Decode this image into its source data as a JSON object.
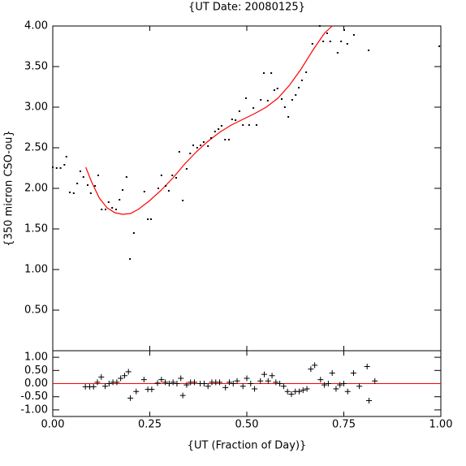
{
  "chart_data": [
    {
      "type": "scatter",
      "title": "{UT Date: 20080125}",
      "y_label": "{350 micron CSO-ou}",
      "marker": "dot",
      "color": "#000000",
      "x": [
        0.0,
        0.01,
        0.02,
        0.03,
        0.035,
        0.044,
        0.054,
        0.063,
        0.071,
        0.079,
        0.09,
        0.098,
        0.109,
        0.117,
        0.126,
        0.136,
        0.144,
        0.153,
        0.163,
        0.172,
        0.18,
        0.19,
        0.199,
        0.209,
        0.236,
        0.245,
        0.253,
        0.272,
        0.28,
        0.291,
        0.299,
        0.308,
        0.318,
        0.326,
        0.335,
        0.345,
        0.354,
        0.362,
        0.372,
        0.381,
        0.389,
        0.4,
        0.408,
        0.418,
        0.427,
        0.435,
        0.444,
        0.454,
        0.462,
        0.471,
        0.481,
        0.49,
        0.498,
        0.506,
        0.517,
        0.525,
        0.536,
        0.544,
        0.554,
        0.563,
        0.571,
        0.579,
        0.59,
        0.598,
        0.607,
        0.617,
        0.626,
        0.634,
        0.642,
        0.653,
        0.669,
        0.688,
        0.697,
        0.707,
        0.715,
        0.734,
        0.743,
        0.751,
        0.759,
        0.776,
        0.814,
        0.996
      ],
      "values": [
        2.26,
        2.25,
        2.25,
        2.29,
        2.39,
        1.95,
        1.94,
        2.06,
        2.21,
        2.14,
        2.04,
        1.94,
        2.03,
        2.16,
        1.74,
        1.74,
        1.83,
        1.76,
        1.74,
        1.86,
        1.98,
        2.14,
        1.13,
        1.45,
        1.96,
        1.62,
        1.62,
        2.0,
        2.16,
        2.03,
        1.97,
        2.16,
        2.13,
        2.45,
        1.85,
        2.24,
        2.43,
        2.53,
        2.5,
        2.53,
        2.57,
        2.52,
        2.62,
        2.7,
        2.73,
        2.77,
        2.6,
        2.6,
        2.85,
        2.84,
        2.95,
        2.78,
        3.11,
        2.78,
        2.99,
        2.78,
        3.09,
        3.42,
        3.08,
        3.42,
        3.21,
        3.23,
        3.1,
        3.0,
        2.88,
        3.09,
        3.15,
        3.24,
        3.33,
        3.43,
        3.78,
        4.0,
        3.81,
        3.91,
        3.81,
        3.67,
        3.81,
        3.95,
        3.78,
        3.89,
        3.7,
        3.75
      ],
      "fit": {
        "color": "#ff0000",
        "x": [
          0.085,
          0.1,
          0.12,
          0.14,
          0.16,
          0.18,
          0.2,
          0.22,
          0.25,
          0.28,
          0.31,
          0.34,
          0.37,
          0.4,
          0.43,
          0.46,
          0.49,
          0.52,
          0.55,
          0.58,
          0.61,
          0.64,
          0.67,
          0.7,
          0.72
        ],
        "values": [
          2.26,
          2.08,
          1.88,
          1.76,
          1.7,
          1.68,
          1.69,
          1.74,
          1.85,
          1.98,
          2.13,
          2.3,
          2.45,
          2.58,
          2.69,
          2.78,
          2.85,
          2.92,
          3.0,
          3.11,
          3.27,
          3.47,
          3.7,
          3.91,
          4.0
        ]
      },
      "xlim": [
        0,
        1
      ],
      "ylim": [
        0,
        4
      ],
      "yticks": [
        {
          "value": 0.5,
          "label": "0.50"
        },
        {
          "value": 1,
          "label": "1.00"
        },
        {
          "value": 1.5,
          "label": "1.50"
        },
        {
          "value": 2,
          "label": "2.00"
        },
        {
          "value": 2.5,
          "label": "2.50"
        },
        {
          "value": 3,
          "label": "3.00"
        },
        {
          "value": 3.5,
          "label": "3.50"
        },
        {
          "value": 4,
          "label": "4.00"
        }
      ]
    },
    {
      "type": "scatter",
      "x_label": "{UT (Fraction of Day)}",
      "marker": "plus",
      "color": "#000000",
      "x": [
        0.084,
        0.095,
        0.105,
        0.115,
        0.125,
        0.135,
        0.145,
        0.155,
        0.165,
        0.175,
        0.185,
        0.195,
        0.2,
        0.215,
        0.235,
        0.245,
        0.255,
        0.27,
        0.28,
        0.29,
        0.3,
        0.31,
        0.32,
        0.33,
        0.335,
        0.345,
        0.355,
        0.365,
        0.38,
        0.39,
        0.4,
        0.41,
        0.42,
        0.43,
        0.445,
        0.455,
        0.465,
        0.475,
        0.49,
        0.5,
        0.51,
        0.52,
        0.535,
        0.545,
        0.555,
        0.565,
        0.575,
        0.585,
        0.595,
        0.605,
        0.615,
        0.625,
        0.635,
        0.645,
        0.655,
        0.665,
        0.675,
        0.69,
        0.7,
        0.71,
        0.72,
        0.73,
        0.74,
        0.75,
        0.76,
        0.775,
        0.79,
        0.81,
        0.815,
        0.83
      ],
      "values": [
        -0.12,
        -0.12,
        -0.12,
        0.05,
        0.25,
        -0.1,
        0.0,
        0.05,
        0.05,
        0.2,
        0.3,
        0.45,
        -0.55,
        -0.3,
        0.15,
        -0.22,
        -0.22,
        0.02,
        0.15,
        0.05,
        0.0,
        0.05,
        0.0,
        0.2,
        -0.45,
        -0.05,
        0.05,
        0.05,
        0.0,
        0.0,
        -0.1,
        0.05,
        0.05,
        0.05,
        -0.15,
        0.05,
        0.0,
        0.1,
        -0.1,
        0.2,
        0.0,
        -0.2,
        0.1,
        0.35,
        0.1,
        0.3,
        0.05,
        0.0,
        -0.1,
        -0.3,
        -0.4,
        -0.3,
        -0.3,
        -0.25,
        -0.2,
        0.55,
        0.7,
        0.15,
        -0.05,
        0.0,
        0.4,
        -0.2,
        -0.05,
        0.0,
        -0.3,
        0.4,
        -0.1,
        0.65,
        -0.65,
        0.1
      ],
      "reference_line": {
        "value": 0,
        "color": "#ff0000"
      },
      "xlim": [
        0,
        1
      ],
      "ylim": [
        -1.25,
        1.25
      ],
      "xticks": [
        {
          "value": 0,
          "label": "0.00"
        },
        {
          "value": 0.25,
          "label": "0.25"
        },
        {
          "value": 0.5,
          "label": "0.50"
        },
        {
          "value": 0.75,
          "label": "0.75"
        },
        {
          "value": 1,
          "label": "1.00"
        }
      ],
      "yticks": [
        {
          "value": -1,
          "label": "-1.00"
        },
        {
          "value": -0.5,
          "label": "-0.50"
        },
        {
          "value": 0,
          "label": "0.00"
        },
        {
          "value": 0.5,
          "label": "0.50"
        },
        {
          "value": 1,
          "label": "1.00"
        }
      ]
    }
  ]
}
